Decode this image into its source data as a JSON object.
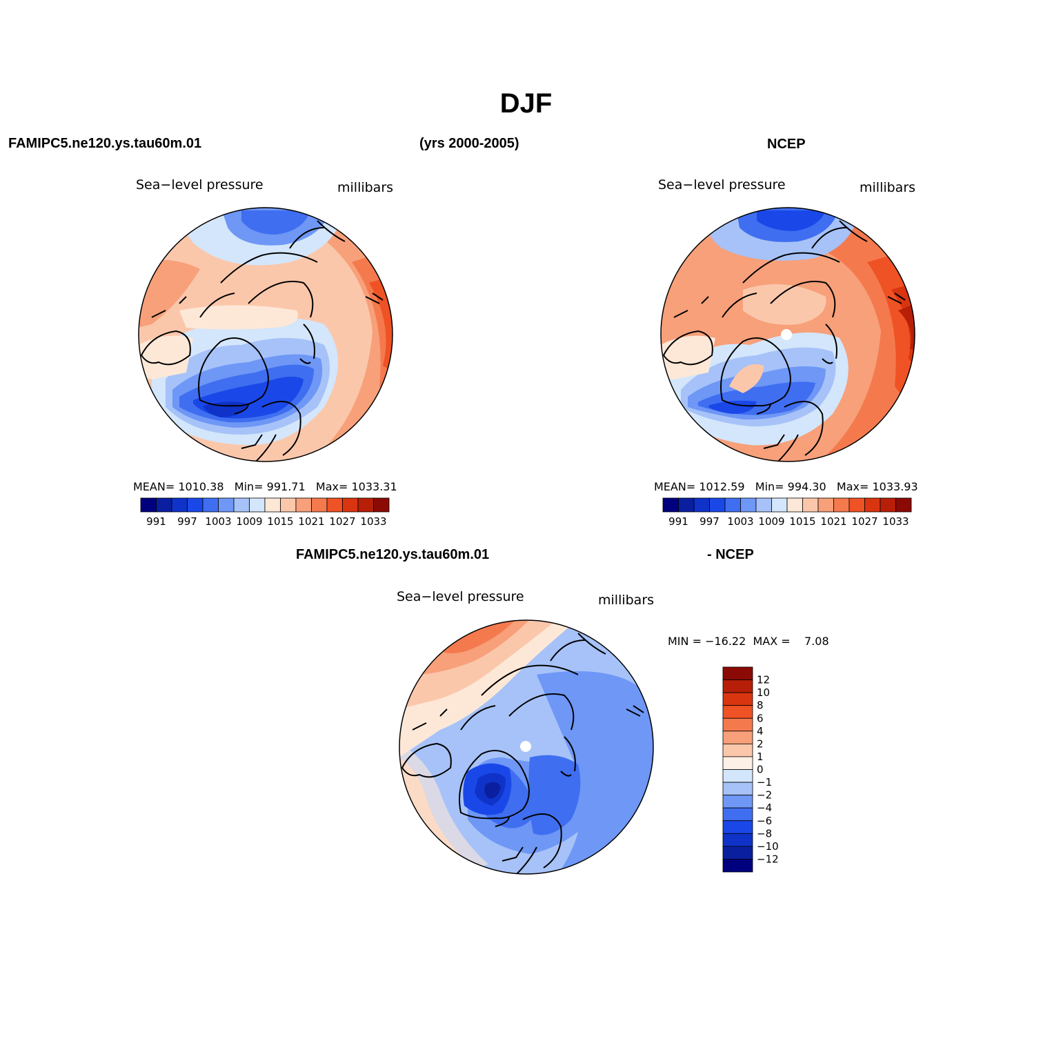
{
  "figure": {
    "title": "DJF",
    "left_case": "FAMIPC5.ne120.ys.tau60m.01",
    "period": "(yrs 2000-2005)",
    "right_case": "NCEP",
    "diff_case": "FAMIPC5.ne120.ys.tau60m.01",
    "diff_suffix": "- NCEP"
  },
  "panels": {
    "model": {
      "variable": "Sea−level pressure",
      "units": "millibars",
      "stats": {
        "mean_label": "MEAN=",
        "mean": "1010.38",
        "min_label": "Min=",
        "min": "991.71",
        "max_label": "Max=",
        "max": "1033.31"
      }
    },
    "obs": {
      "variable": "Sea−level pressure",
      "units": "millibars",
      "stats": {
        "mean_label": "MEAN=",
        "mean": "1012.59",
        "min_label": "Min=",
        "min": "994.30",
        "max_label": "Max=",
        "max": "1033.93"
      }
    },
    "diff": {
      "variable": "Sea−level pressure",
      "units": "millibars",
      "minmax": {
        "min_label": "MIN =",
        "min": "−16.22",
        "max_label": "MAX =",
        "max": "7.08"
      }
    }
  },
  "colorbars": {
    "abs": {
      "colors": [
        "#00007f",
        "#0a1f9f",
        "#0f33c8",
        "#1a48e8",
        "#3f6ef0",
        "#6e97f6",
        "#a6c2f8",
        "#d3e6fb",
        "#fde8d8",
        "#fbc7ab",
        "#f7a07a",
        "#f47a4e",
        "#ef5224",
        "#d93510",
        "#b81f08",
        "#8c0a05"
      ],
      "labels": [
        "991",
        "997",
        "1003",
        "1009",
        "1015",
        "1021",
        "1027",
        "1033"
      ]
    },
    "diff": {
      "colors": [
        "#00007f",
        "#0a1f9f",
        "#0f33c8",
        "#1a48e8",
        "#3f6ef0",
        "#6e97f6",
        "#a6c2f8",
        "#d3e6fb",
        "#fdf0e6",
        "#fbc7ab",
        "#f7a07a",
        "#f47a4e",
        "#ef5224",
        "#d93510",
        "#b81f08",
        "#8c0a05"
      ],
      "labels": [
        "−12",
        "−10",
        "−8",
        "−6",
        "−4",
        "−2",
        "−1",
        "0",
        "1",
        "2",
        "4",
        "6",
        "8",
        "10",
        "12"
      ]
    }
  },
  "palette": {
    "deep_blue": "#0f33c8",
    "mid_blue": "#3f6ef0",
    "light_blue": "#a6c2f8",
    "pale_blue": "#d3e6fb",
    "pale_orange": "#fbc7ab",
    "orange": "#f7a07a",
    "red_orange": "#ef5224",
    "dark_red": "#b81f08",
    "coast": "#000000"
  }
}
